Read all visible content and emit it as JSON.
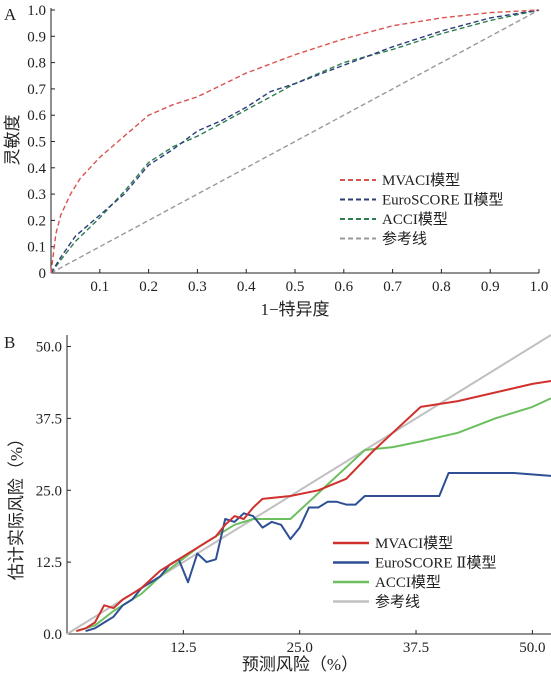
{
  "chart_data": [
    {
      "panel_label": "A",
      "type": "line",
      "xlabel": "1−特异度",
      "ylabel": "灵敏度",
      "xlim": [
        0,
        1
      ],
      "ylim": [
        0,
        1
      ],
      "x_ticks": [
        "0.1",
        "0.2",
        "0.3",
        "0.4",
        "0.5",
        "0.6",
        "0.7",
        "0.8",
        "0.9",
        "1.0"
      ],
      "y_ticks": [
        "0",
        "0.1",
        "0.2",
        "0.3",
        "0.4",
        "0.5",
        "0.6",
        "0.7",
        "0.8",
        "0.9",
        "1.0"
      ],
      "legend_position": "bottom-right",
      "series": [
        {
          "name": "MVACI模型",
          "color": "#d9534f",
          "dashed": true,
          "x": [
            0,
            0.01,
            0.02,
            0.04,
            0.06,
            0.1,
            0.15,
            0.2,
            0.25,
            0.3,
            0.4,
            0.5,
            0.6,
            0.7,
            0.8,
            0.9,
            1.0
          ],
          "y": [
            0,
            0.15,
            0.22,
            0.3,
            0.36,
            0.44,
            0.52,
            0.6,
            0.64,
            0.67,
            0.76,
            0.83,
            0.89,
            0.94,
            0.97,
            0.99,
            1.0
          ]
        },
        {
          "name": "EuroSCORE Ⅱ模型",
          "color": "#2c3e7a",
          "dashed": true,
          "x": [
            0,
            0.02,
            0.05,
            0.1,
            0.15,
            0.2,
            0.25,
            0.3,
            0.35,
            0.4,
            0.45,
            0.5,
            0.6,
            0.7,
            0.8,
            0.9,
            1.0
          ],
          "y": [
            0,
            0.06,
            0.14,
            0.22,
            0.3,
            0.41,
            0.47,
            0.54,
            0.58,
            0.63,
            0.69,
            0.72,
            0.79,
            0.86,
            0.92,
            0.97,
            1.0
          ]
        },
        {
          "name": "ACCI模型",
          "color": "#2e7d4f",
          "dashed": true,
          "x": [
            0,
            0.02,
            0.05,
            0.1,
            0.15,
            0.2,
            0.25,
            0.3,
            0.35,
            0.4,
            0.45,
            0.5,
            0.6,
            0.7,
            0.8,
            0.9,
            1.0
          ],
          "y": [
            0,
            0.05,
            0.12,
            0.21,
            0.31,
            0.42,
            0.48,
            0.52,
            0.57,
            0.62,
            0.67,
            0.72,
            0.8,
            0.85,
            0.91,
            0.96,
            1.0
          ]
        },
        {
          "name": "参考线",
          "color": "#999999",
          "dashed": true,
          "x": [
            0,
            1
          ],
          "y": [
            0,
            1
          ]
        }
      ]
    },
    {
      "panel_label": "B",
      "type": "line",
      "xlabel": "预测风险（%）",
      "ylabel": "估计实际风险（%）",
      "xlim": [
        0,
        52
      ],
      "ylim": [
        0,
        52
      ],
      "x_ticks": [
        "12.5",
        "25.0",
        "37.5",
        "50.0"
      ],
      "y_ticks": [
        "0.0",
        "12.5",
        "25.0",
        "37.5",
        "50.0"
      ],
      "legend_position": "bottom-right",
      "series": [
        {
          "name": "MVACI模型",
          "color": "#d0312d",
          "x": [
            1,
            2,
            3,
            4,
            5,
            6,
            7,
            8,
            9,
            10,
            11,
            12,
            13,
            14,
            15,
            16,
            17,
            18,
            19,
            20,
            21,
            24,
            27,
            30,
            33,
            38,
            42,
            46,
            50,
            52
          ],
          "y": [
            0.5,
            1,
            2,
            5,
            4.5,
            6,
            7,
            8,
            9.5,
            11,
            12,
            13,
            14,
            15,
            16,
            17,
            19,
            20.5,
            20,
            22,
            23.5,
            24,
            25,
            27,
            32,
            39.5,
            40.5,
            42,
            43.5,
            44
          ]
        },
        {
          "name": "EuroSCORE Ⅱ模型",
          "color": "#2f4f94",
          "x": [
            2,
            3,
            4,
            5,
            6,
            7,
            8,
            9,
            10,
            11,
            12,
            13,
            14,
            15,
            16,
            17,
            18,
            19,
            20,
            21,
            22,
            23,
            24,
            25,
            26,
            27,
            28,
            29,
            30,
            31,
            32,
            33,
            36,
            38,
            40,
            41,
            44,
            48,
            52
          ],
          "y": [
            0.5,
            1,
            2,
            3,
            5,
            6,
            8,
            9,
            10,
            12,
            13,
            9,
            14,
            12.5,
            13,
            20,
            19.5,
            21,
            20.5,
            18.5,
            19.5,
            19,
            16.5,
            18.5,
            22,
            22,
            23,
            23,
            22.5,
            22.5,
            24,
            24,
            24,
            24,
            24,
            28,
            28,
            28,
            27.5
          ]
        },
        {
          "name": "ACCI模型",
          "color": "#6cbf5f",
          "x": [
            1,
            3,
            5,
            8,
            10,
            12,
            14,
            16,
            18,
            20,
            22,
            24,
            26,
            28,
            30,
            32,
            35,
            38,
            42,
            46,
            50,
            52
          ],
          "y": [
            0.5,
            1.5,
            4,
            7,
            10,
            12.5,
            15,
            17,
            19,
            20,
            20,
            20,
            23,
            26,
            29,
            32,
            32.5,
            33.5,
            35,
            37.5,
            39.5,
            41
          ]
        },
        {
          "name": "参考线",
          "color": "#c0c0c0",
          "x": [
            0,
            52
          ],
          "y": [
            0,
            52
          ]
        }
      ]
    }
  ]
}
